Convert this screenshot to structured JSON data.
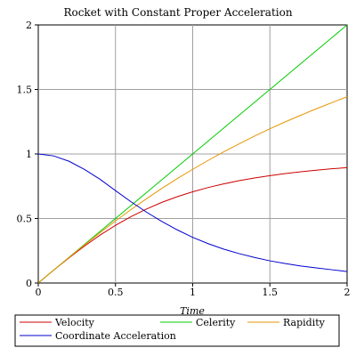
{
  "chart_data": {
    "type": "line",
    "title": "Rocket with Constant Proper Acceleration",
    "xlabel": "Time",
    "ylabel": "",
    "xlim": [
      0,
      2
    ],
    "ylim": [
      0,
      2
    ],
    "x_ticks": [
      "0",
      "0.5",
      "1",
      "1.5",
      "2"
    ],
    "y_ticks": [
      "0",
      "0.5",
      "1",
      "1.5",
      "2"
    ],
    "grid": true,
    "legend_position": "bottom",
    "x": [
      0,
      0.1,
      0.2,
      0.3,
      0.4,
      0.5,
      0.6,
      0.7,
      0.8,
      0.9,
      1.0,
      1.1,
      1.2,
      1.3,
      1.4,
      1.5,
      1.6,
      1.7,
      1.8,
      1.9,
      2.0
    ],
    "series": [
      {
        "name": "Velocity",
        "color": "#cc0000",
        "values": [
          0,
          0.1,
          0.196,
          0.287,
          0.371,
          0.447,
          0.514,
          0.573,
          0.625,
          0.669,
          0.707,
          0.74,
          0.768,
          0.793,
          0.814,
          0.832,
          0.848,
          0.862,
          0.874,
          0.885,
          0.894
        ]
      },
      {
        "name": "Celerity",
        "color": "#00cc00",
        "values": [
          0,
          0.1,
          0.2,
          0.3,
          0.4,
          0.5,
          0.6,
          0.7,
          0.8,
          0.9,
          1.0,
          1.1,
          1.2,
          1.3,
          1.4,
          1.5,
          1.6,
          1.7,
          1.8,
          1.9,
          2.0
        ]
      },
      {
        "name": "Rapidity",
        "color": "#e69500",
        "values": [
          0,
          0.1,
          0.199,
          0.296,
          0.39,
          0.481,
          0.569,
          0.652,
          0.733,
          0.809,
          0.881,
          0.95,
          1.016,
          1.078,
          1.138,
          1.195,
          1.249,
          1.3,
          1.35,
          1.397,
          1.444
        ]
      },
      {
        "name": "Coordinate Acceleration",
        "color": "#0000cc",
        "values": [
          1.0,
          0.985,
          0.943,
          0.88,
          0.804,
          0.716,
          0.63,
          0.55,
          0.477,
          0.412,
          0.354,
          0.305,
          0.263,
          0.228,
          0.198,
          0.172,
          0.151,
          0.132,
          0.117,
          0.103,
          0.089
        ]
      }
    ]
  }
}
